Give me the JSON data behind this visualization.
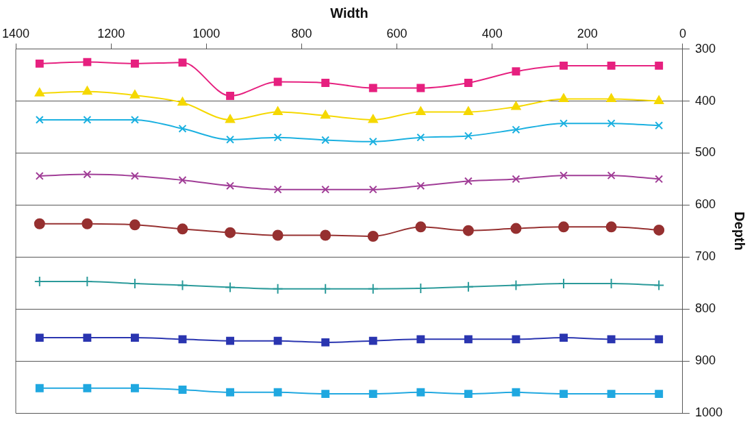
{
  "chart_data": {
    "type": "line",
    "xlabel": "Width",
    "ylabel": "Depth",
    "x": [
      1350,
      1250,
      1150,
      1050,
      950,
      850,
      750,
      650,
      550,
      450,
      350,
      250,
      150,
      50
    ],
    "xlim": [
      1400,
      0
    ],
    "xticks": [
      1400,
      1200,
      1000,
      800,
      600,
      400,
      200,
      0
    ],
    "ylim": [
      1000,
      300
    ],
    "yticks": [
      300,
      400,
      500,
      600,
      700,
      800,
      900,
      1000
    ],
    "grid": "y",
    "legend": false,
    "series": [
      {
        "color": "#e6207f",
        "marker": "square",
        "values": [
          328,
          325,
          328,
          326,
          390,
          363,
          365,
          375,
          375,
          365,
          343,
          332,
          332,
          332
        ]
      },
      {
        "color": "#f5d800",
        "marker": "triangle",
        "values": [
          385,
          382,
          389,
          403,
          436,
          421,
          428,
          436,
          421,
          421,
          411,
          396,
          396,
          400
        ]
      },
      {
        "color": "#1ab0e0",
        "marker": "cross",
        "values": [
          436,
          436,
          436,
          453,
          474,
          470,
          475,
          478,
          470,
          467,
          455,
          443,
          443,
          447
        ]
      },
      {
        "color": "#a03c96",
        "marker": "cross",
        "values": [
          544,
          541,
          544,
          552,
          563,
          570,
          570,
          570,
          563,
          554,
          550,
          543,
          543,
          550
        ]
      },
      {
        "color": "#963030",
        "marker": "circle",
        "values": [
          636,
          636,
          638,
          646,
          653,
          658,
          658,
          660,
          642,
          649,
          645,
          642,
          642,
          648
        ]
      },
      {
        "color": "#2a9a9a",
        "marker": "plus",
        "values": [
          747,
          747,
          751,
          754,
          758,
          761,
          761,
          761,
          760,
          757,
          754,
          751,
          751,
          754
        ]
      },
      {
        "color": "#2a35b0",
        "marker": "square",
        "values": [
          855,
          855,
          855,
          858,
          861,
          861,
          864,
          861,
          858,
          858,
          858,
          855,
          858,
          858
        ]
      },
      {
        "color": "#20a8e0",
        "marker": "square",
        "values": [
          952,
          952,
          952,
          955,
          960,
          960,
          963,
          963,
          960,
          963,
          960,
          963,
          963,
          963
        ]
      }
    ]
  }
}
